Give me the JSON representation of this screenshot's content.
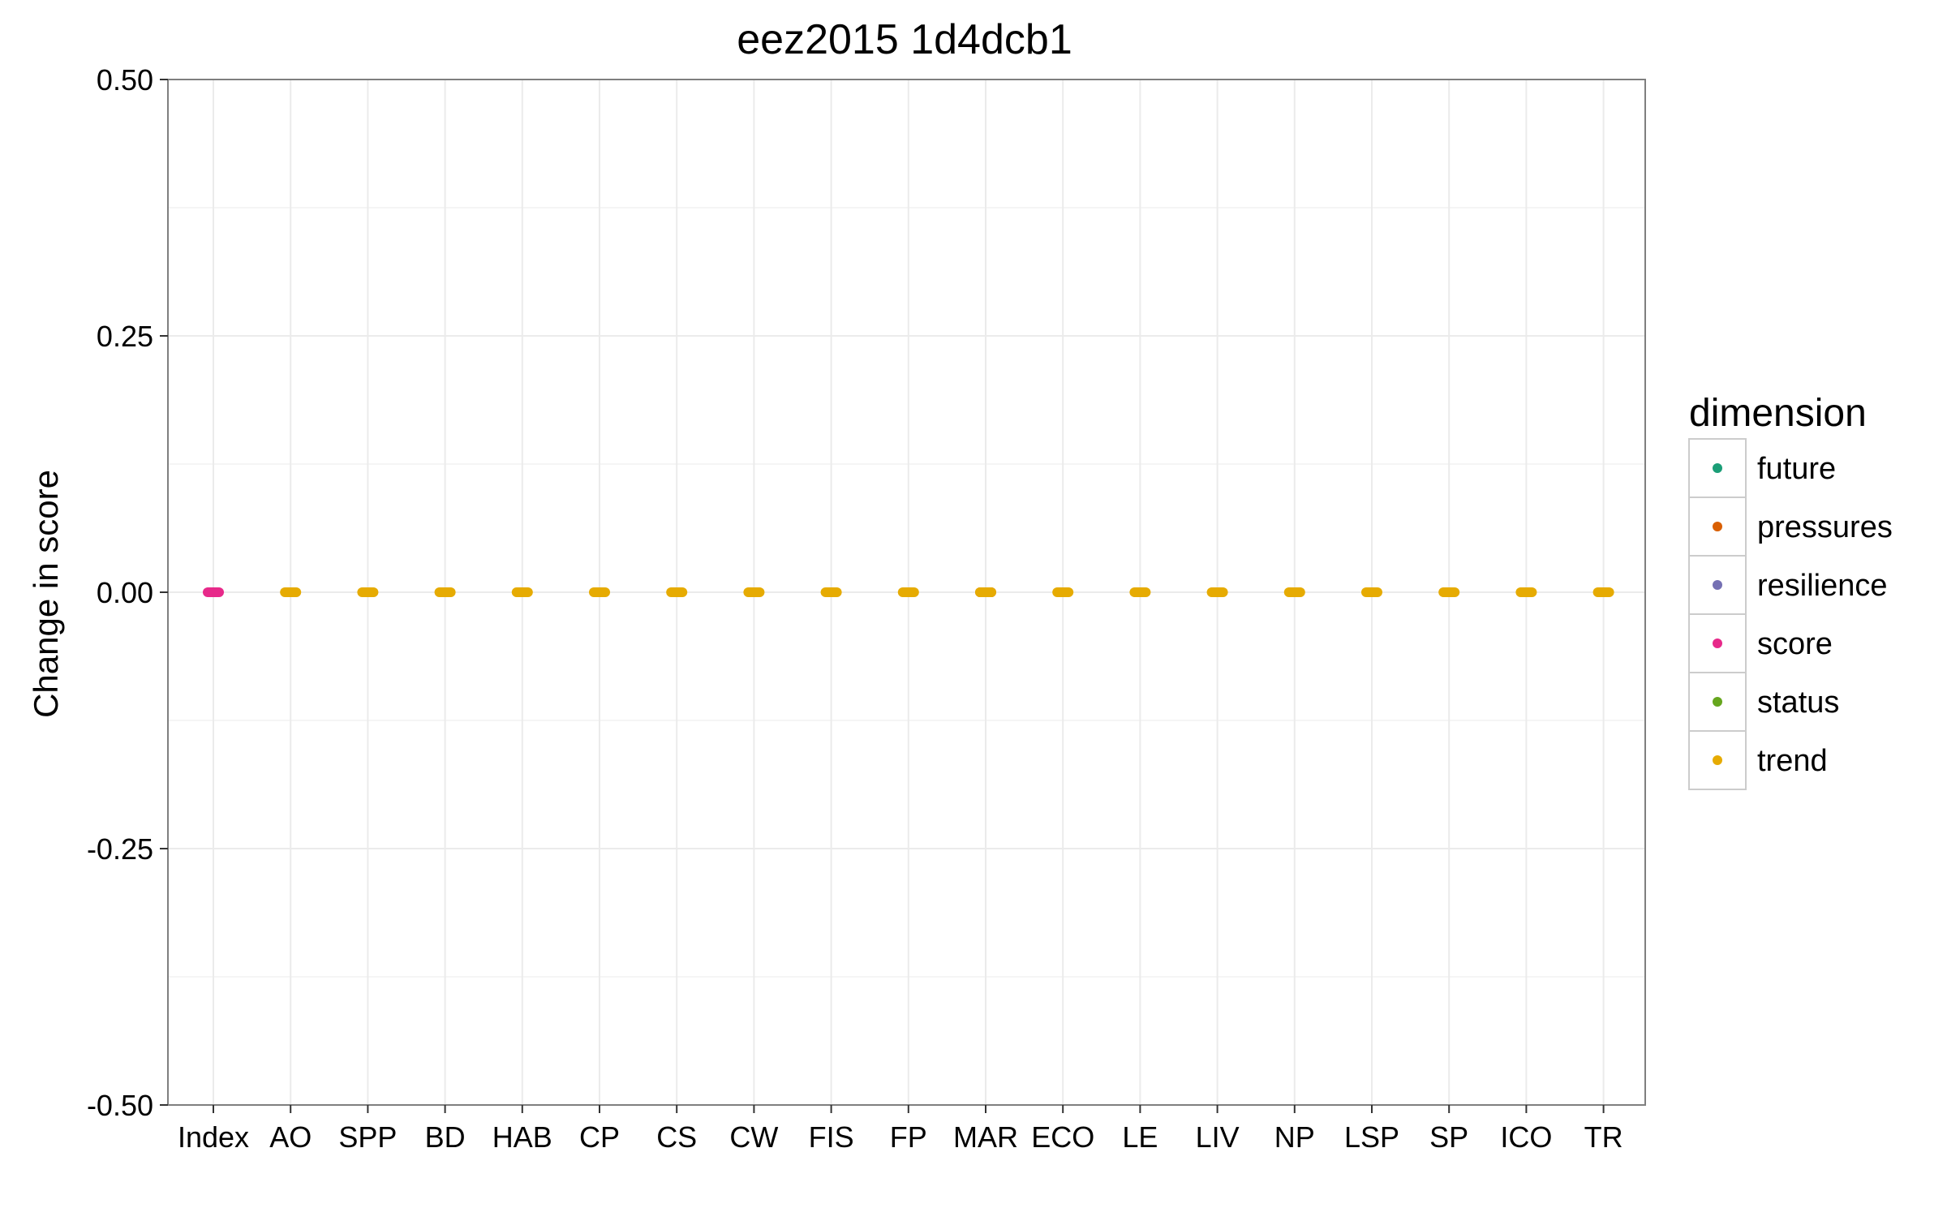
{
  "chart_data": {
    "type": "scatter",
    "title": "eez2015 1d4dcb1",
    "xlabel": "",
    "ylabel": "Change in score",
    "ylim": [
      -0.5,
      0.5
    ],
    "yticks": [
      "-0.50",
      "-0.25",
      "0.00",
      "0.25",
      "0.50"
    ],
    "ytick_values": [
      -0.5,
      -0.25,
      0,
      0.25,
      0.5
    ],
    "categories": [
      "Index",
      "AO",
      "SPP",
      "BD",
      "HAB",
      "CP",
      "CS",
      "CW",
      "FIS",
      "FP",
      "MAR",
      "ECO",
      "LE",
      "LIV",
      "NP",
      "LSP",
      "SP",
      "ICO",
      "TR"
    ],
    "grid": true,
    "legend": {
      "title": "dimension",
      "position": "right",
      "entries": [
        {
          "name": "future",
          "color": "#1b9e77"
        },
        {
          "name": "pressures",
          "color": "#d95f02"
        },
        {
          "name": "resilience",
          "color": "#7570b3"
        },
        {
          "name": "score",
          "color": "#e7298a"
        },
        {
          "name": "status",
          "color": "#66a61e"
        },
        {
          "name": "trend",
          "color": "#e6ab02"
        }
      ]
    },
    "series": [
      {
        "name": "score",
        "points": [
          {
            "x": "Index",
            "y": 0
          }
        ]
      },
      {
        "name": "pressures",
        "points": [
          {
            "x": "MAR",
            "y": 0
          }
        ]
      },
      {
        "name": "trend",
        "points": [
          {
            "x": "AO",
            "y": 0
          },
          {
            "x": "SPP",
            "y": 0
          },
          {
            "x": "BD",
            "y": 0
          },
          {
            "x": "HAB",
            "y": 0
          },
          {
            "x": "CP",
            "y": 0
          },
          {
            "x": "CS",
            "y": 0
          },
          {
            "x": "CW",
            "y": 0
          },
          {
            "x": "FIS",
            "y": 0
          },
          {
            "x": "FP",
            "y": 0
          },
          {
            "x": "MAR",
            "y": 0
          },
          {
            "x": "ECO",
            "y": 0
          },
          {
            "x": "LE",
            "y": 0
          },
          {
            "x": "LIV",
            "y": 0
          },
          {
            "x": "NP",
            "y": 0
          },
          {
            "x": "LSP",
            "y": 0
          },
          {
            "x": "SP",
            "y": 0
          },
          {
            "x": "ICO",
            "y": 0
          },
          {
            "x": "TR",
            "y": 0
          }
        ]
      }
    ]
  }
}
